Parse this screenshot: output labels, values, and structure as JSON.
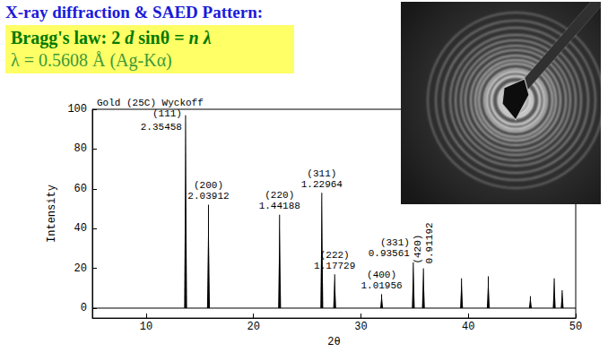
{
  "slide": {
    "title": "X-ray diffraction & SAED Pattern:",
    "formula": "Bragg's law: 2 d sinθ = n λ",
    "wavelength": "λ = 0.5608 Å (Ag-Kα)"
  },
  "chart_data": {
    "type": "peaks",
    "title": "Gold (25C) Wyckoff",
    "x_label": "2θ",
    "y_label": "Intensity",
    "x": [
      13.68,
      15.81,
      22.43,
      26.36,
      27.56,
      31.93,
      34.88,
      35.82,
      39.37,
      41.86,
      45.78,
      48.0,
      48.74
    ],
    "values": [
      97,
      52,
      47,
      58,
      17,
      7,
      23,
      20,
      15,
      16,
      6,
      15,
      9
    ],
    "hkl": [
      "(111)",
      "(200)",
      "(220)",
      "(311)",
      "(222)",
      "(400)",
      "(331)",
      "(420)",
      null,
      null,
      null,
      null,
      null
    ],
    "d_spacing": [
      2.35458,
      2.03912,
      1.44188,
      1.22964,
      1.17729,
      1.01956,
      0.93561,
      0.91192,
      null,
      null,
      null,
      null,
      null
    ],
    "baseline": 0,
    "color": "#000000",
    "xlim": [
      5,
      50
    ],
    "xticks": [
      10,
      20,
      30,
      40,
      50
    ],
    "ylim": [
      -5,
      100
    ],
    "yticks": [
      0,
      20,
      40,
      60,
      80,
      100
    ],
    "data_labels": true
  }
}
